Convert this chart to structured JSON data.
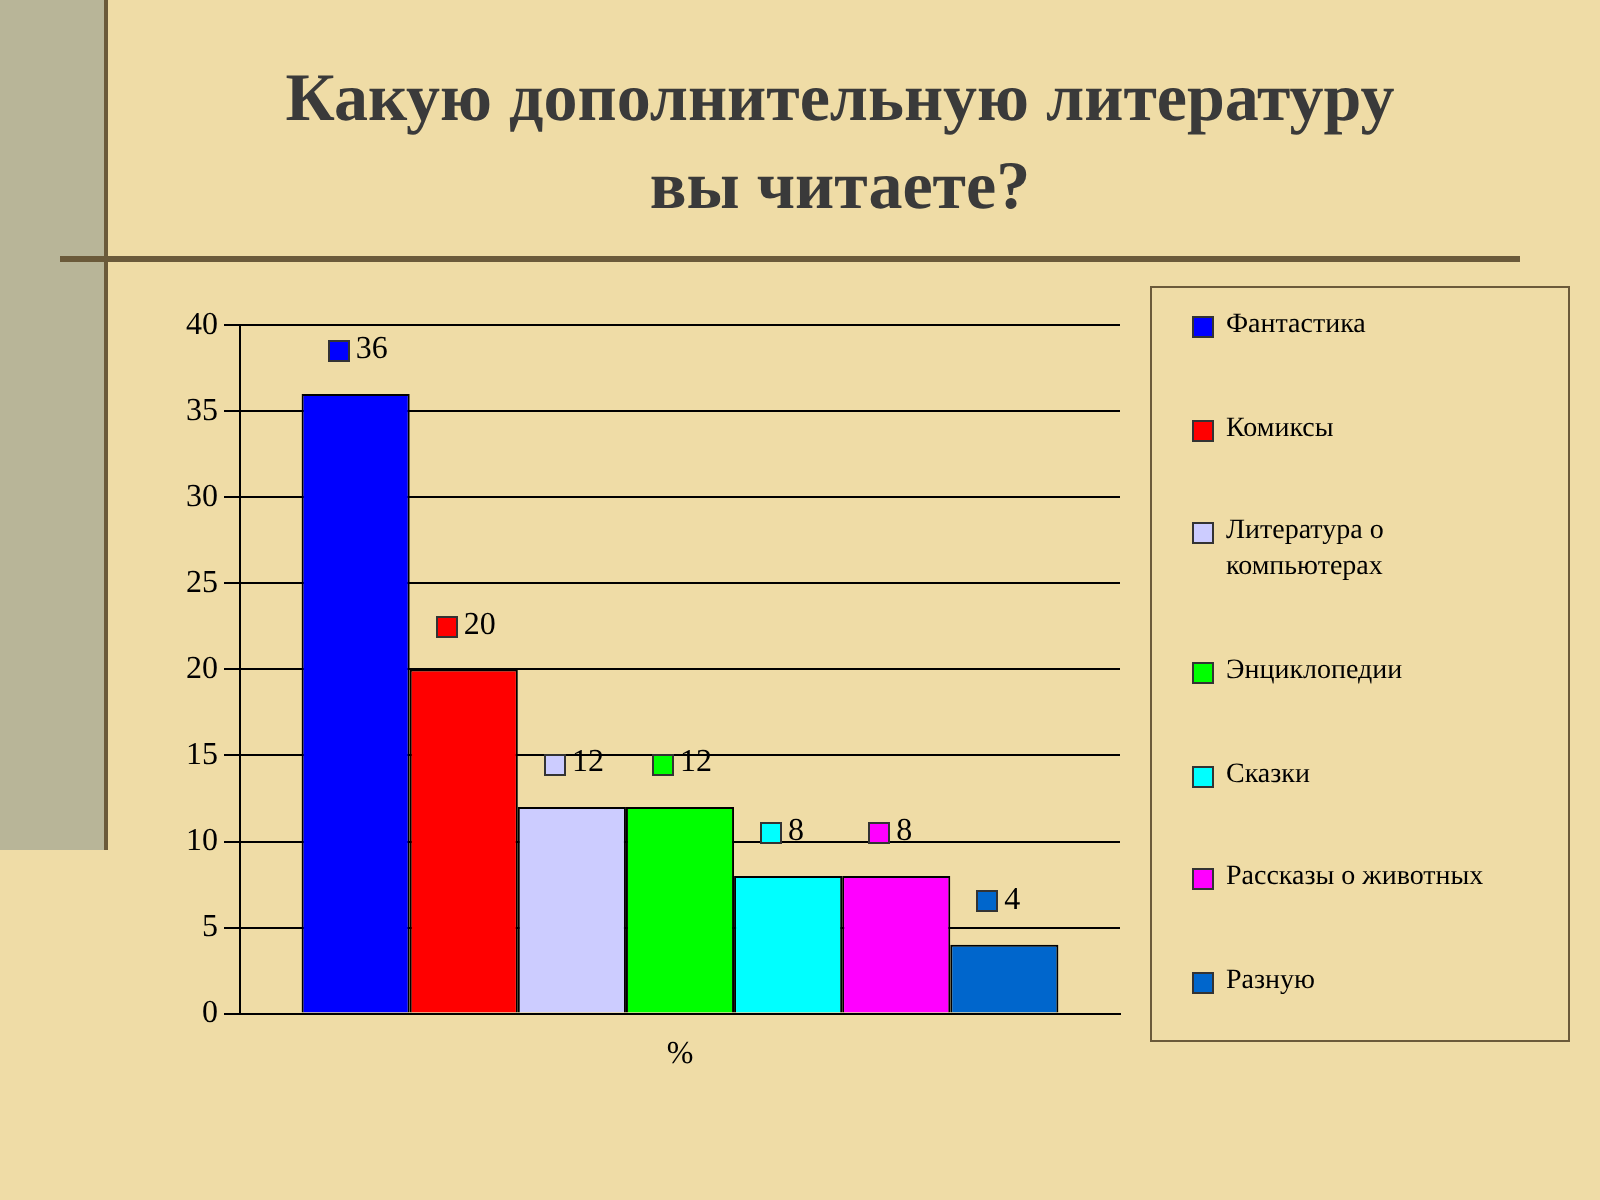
{
  "chart_data": {
    "type": "bar",
    "title": "Какую дополнительную литературу вы читаете?",
    "categories": [
      "%"
    ],
    "series": [
      {
        "name": "Фантастика",
        "color": "#0000ff",
        "values": [
          36
        ]
      },
      {
        "name": "Комиксы",
        "color": "#ff0000",
        "values": [
          20
        ]
      },
      {
        "name": "Литература о компьютерах",
        "color": "#ccccff",
        "values": [
          12
        ]
      },
      {
        "name": "Энциклопедии",
        "color": "#00ff00",
        "values": [
          12
        ]
      },
      {
        "name": "Сказки",
        "color": "#00ffff",
        "values": [
          8
        ]
      },
      {
        "name": "Рассказы о животных",
        "color": "#ff00ff",
        "values": [
          8
        ]
      },
      {
        "name": "Разную",
        "color": "#0066cc",
        "values": [
          4
        ]
      }
    ],
    "ylim": [
      0,
      40
    ],
    "yticks": [
      0,
      5,
      10,
      15,
      20,
      25,
      30,
      35,
      40
    ],
    "grid": "y",
    "legend": "right",
    "data_labels": true
  }
}
